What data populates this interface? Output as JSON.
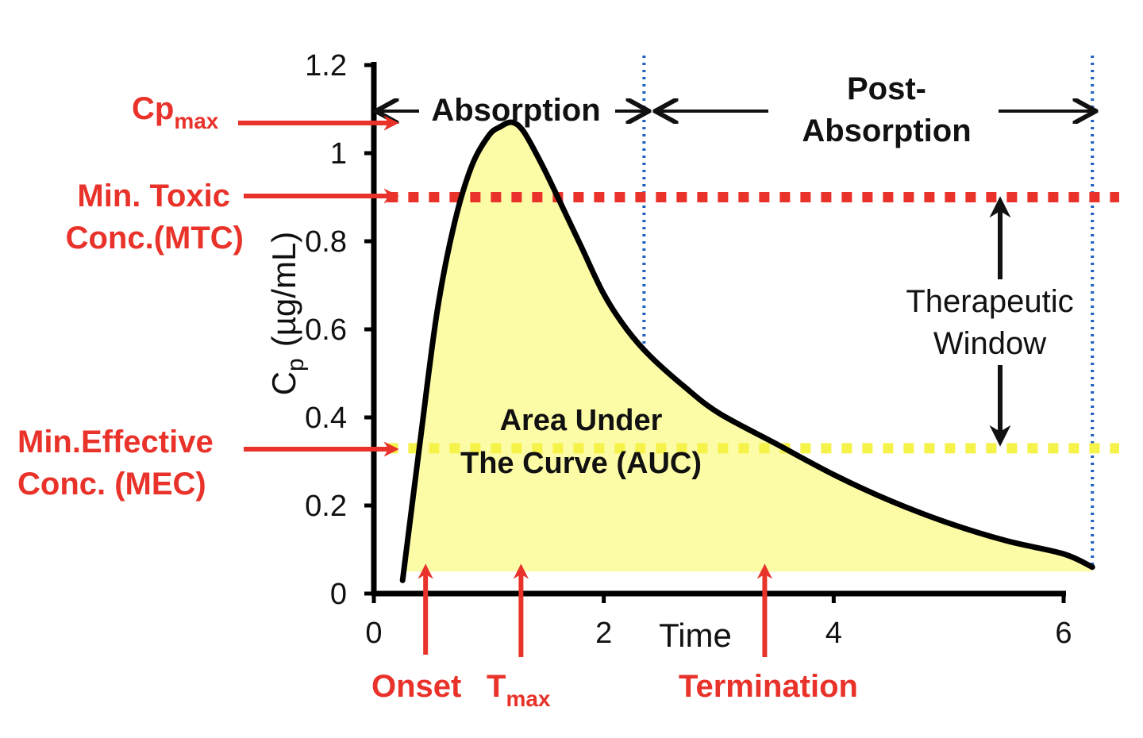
{
  "chart_data": {
    "type": "area",
    "xlabel": "Time",
    "ylabel": "Cp (µg/mL)",
    "ylabel_main": "C",
    "ylabel_sub": "p",
    "ylabel_rest": "(µg/mL)",
    "xlim": [
      0,
      6
    ],
    "ylim": [
      0,
      1.2
    ],
    "x_ticks": [
      0,
      2,
      4,
      6
    ],
    "x_tick_labels": [
      "0",
      "2",
      "4",
      "6"
    ],
    "y_ticks": [
      0,
      0.2,
      0.4,
      0.6,
      0.8,
      1.0,
      1.2
    ],
    "y_tick_labels": [
      "0",
      "0.2",
      "0.4",
      "0.6",
      "0.8",
      "1",
      "1.2"
    ],
    "grid": false,
    "series": [
      {
        "x": [
          0.25,
          0.4,
          0.55,
          0.7,
          0.85,
          1.0,
          1.1,
          1.2,
          1.3,
          1.45,
          1.6,
          1.8,
          2.0,
          2.2,
          2.4,
          2.7,
          3.0,
          3.5,
          4.0,
          4.5,
          5.0,
          5.5,
          6.0,
          6.25
        ],
        "y": [
          0.03,
          0.34,
          0.64,
          0.84,
          0.97,
          1.04,
          1.06,
          1.07,
          1.05,
          0.98,
          0.9,
          0.79,
          0.68,
          0.6,
          0.54,
          0.47,
          0.41,
          0.34,
          0.27,
          0.21,
          0.16,
          0.12,
          0.09,
          0.06
        ]
      }
    ],
    "fill_color": "#fdfca6",
    "curve_color": "#000000",
    "reference_lines": [
      {
        "name": "MTC",
        "y": 0.9,
        "color": "#e8322a"
      },
      {
        "name": "MEC",
        "y": 0.33,
        "color": "#f5f24a"
      }
    ],
    "phase_boundaries_x": [
      2.35,
      6.25
    ],
    "phase_boundary_color": "#1f5fbf",
    "annotations": {
      "absorption": "Absorption",
      "post_absorption_line1": "Post-",
      "post_absorption_line2": "Absorption",
      "auc_line1": "Area Under",
      "auc_line2": "The Curve (AUC)",
      "therapeutic_line1": "Therapeutic",
      "therapeutic_line2": "Window"
    },
    "markers": {
      "cpmax_main": "Cp",
      "cpmax_sub": "max",
      "mtc_line1": "Min. Toxic",
      "mtc_line2": "Conc.(MTC)",
      "mec_line1": "Min.Effective",
      "mec_line2": "Conc. (MEC)",
      "onset": "Onset",
      "tmax_main": "T",
      "tmax_sub": "max",
      "termination": "Termination",
      "onset_x": 0.45,
      "tmax_x": 1.28,
      "termination_x": 3.4,
      "color": "#e8322a"
    }
  }
}
